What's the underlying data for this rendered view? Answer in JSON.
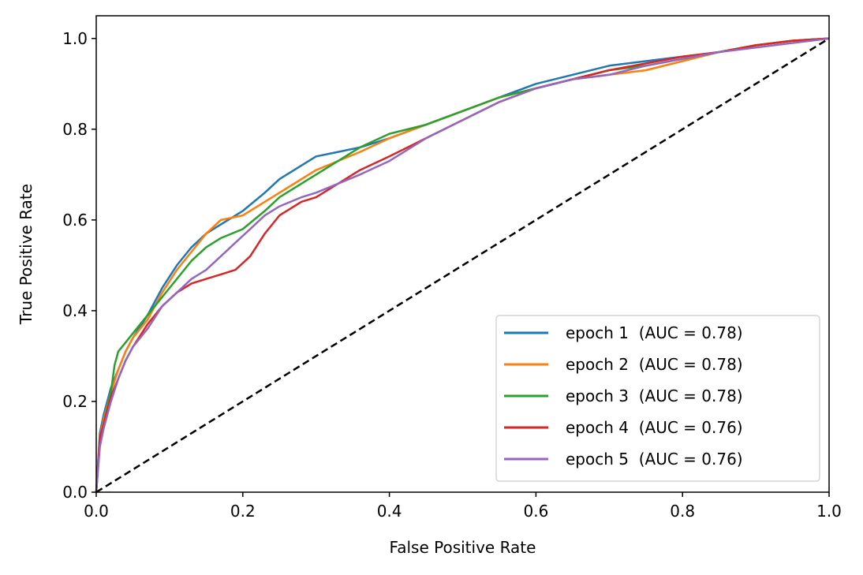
{
  "chart_data": {
    "type": "line",
    "title": "",
    "xlabel": "False Positive Rate",
    "ylabel": "True Positive Rate",
    "xlim": [
      0.0,
      1.0
    ],
    "ylim": [
      0.0,
      1.05
    ],
    "xticks": [
      "0.0",
      "0.2",
      "0.4",
      "0.6",
      "0.8",
      "1.0"
    ],
    "yticks": [
      "0.0",
      "0.2",
      "0.4",
      "0.6",
      "0.8",
      "1.0"
    ],
    "grid": false,
    "legend_position": "lower-right",
    "reference_line": {
      "x": [
        0,
        1
      ],
      "y": [
        0,
        1
      ],
      "style": "dashed",
      "color": "#000000"
    },
    "series": [
      {
        "name": "epoch 1  (AUC = 0.78)",
        "color": "#1f77b4",
        "x": [
          0,
          0.005,
          0.01,
          0.02,
          0.03,
          0.04,
          0.05,
          0.07,
          0.09,
          0.11,
          0.13,
          0.15,
          0.17,
          0.2,
          0.23,
          0.25,
          0.28,
          0.3,
          0.33,
          0.36,
          0.4,
          0.45,
          0.5,
          0.55,
          0.6,
          0.65,
          0.7,
          0.75,
          0.8,
          0.85,
          0.9,
          0.95,
          1.0
        ],
        "y": [
          0,
          0.13,
          0.17,
          0.23,
          0.27,
          0.31,
          0.34,
          0.39,
          0.45,
          0.5,
          0.54,
          0.57,
          0.59,
          0.62,
          0.66,
          0.69,
          0.72,
          0.74,
          0.75,
          0.76,
          0.78,
          0.81,
          0.84,
          0.87,
          0.9,
          0.92,
          0.94,
          0.95,
          0.96,
          0.97,
          0.985,
          0.995,
          1.0
        ]
      },
      {
        "name": "epoch 2  (AUC = 0.78)",
        "color": "#ff7f0e",
        "x": [
          0,
          0.005,
          0.01,
          0.02,
          0.03,
          0.04,
          0.05,
          0.07,
          0.09,
          0.11,
          0.13,
          0.15,
          0.17,
          0.2,
          0.23,
          0.25,
          0.28,
          0.3,
          0.33,
          0.36,
          0.4,
          0.45,
          0.5,
          0.55,
          0.6,
          0.65,
          0.7,
          0.75,
          0.8,
          0.85,
          0.9,
          0.95,
          1.0
        ],
        "y": [
          0,
          0.12,
          0.16,
          0.22,
          0.27,
          0.31,
          0.34,
          0.38,
          0.44,
          0.49,
          0.53,
          0.57,
          0.6,
          0.61,
          0.64,
          0.66,
          0.69,
          0.71,
          0.73,
          0.75,
          0.78,
          0.81,
          0.84,
          0.87,
          0.89,
          0.91,
          0.92,
          0.93,
          0.95,
          0.97,
          0.985,
          0.995,
          1.0
        ]
      },
      {
        "name": "epoch 3  (AUC = 0.78)",
        "color": "#2ca02c",
        "x": [
          0,
          0.005,
          0.01,
          0.02,
          0.025,
          0.03,
          0.04,
          0.05,
          0.07,
          0.09,
          0.11,
          0.13,
          0.15,
          0.17,
          0.2,
          0.23,
          0.25,
          0.28,
          0.3,
          0.33,
          0.36,
          0.4,
          0.45,
          0.5,
          0.55,
          0.6,
          0.65,
          0.7,
          0.75,
          0.8,
          0.85,
          0.9,
          0.95,
          1.0
        ],
        "y": [
          0,
          0.11,
          0.15,
          0.22,
          0.28,
          0.31,
          0.33,
          0.35,
          0.39,
          0.43,
          0.47,
          0.51,
          0.54,
          0.56,
          0.58,
          0.62,
          0.65,
          0.68,
          0.7,
          0.73,
          0.76,
          0.79,
          0.81,
          0.84,
          0.87,
          0.89,
          0.91,
          0.93,
          0.94,
          0.955,
          0.97,
          0.985,
          0.995,
          1.0
        ]
      },
      {
        "name": "epoch 4  (AUC = 0.76)",
        "color": "#d62728",
        "x": [
          0,
          0.005,
          0.01,
          0.02,
          0.03,
          0.04,
          0.05,
          0.07,
          0.09,
          0.11,
          0.13,
          0.15,
          0.17,
          0.19,
          0.21,
          0.23,
          0.25,
          0.28,
          0.3,
          0.33,
          0.36,
          0.4,
          0.45,
          0.5,
          0.55,
          0.6,
          0.65,
          0.7,
          0.75,
          0.8,
          0.85,
          0.9,
          0.95,
          1.0
        ],
        "y": [
          0,
          0.12,
          0.15,
          0.21,
          0.25,
          0.29,
          0.32,
          0.37,
          0.41,
          0.44,
          0.46,
          0.47,
          0.48,
          0.49,
          0.52,
          0.57,
          0.61,
          0.64,
          0.65,
          0.68,
          0.71,
          0.74,
          0.78,
          0.82,
          0.86,
          0.89,
          0.91,
          0.93,
          0.945,
          0.96,
          0.97,
          0.985,
          0.995,
          1.0
        ]
      },
      {
        "name": "epoch 5  (AUC = 0.76)",
        "color": "#9467bd",
        "x": [
          0,
          0.005,
          0.01,
          0.02,
          0.03,
          0.04,
          0.05,
          0.07,
          0.09,
          0.11,
          0.13,
          0.15,
          0.17,
          0.19,
          0.21,
          0.23,
          0.25,
          0.28,
          0.3,
          0.33,
          0.36,
          0.4,
          0.45,
          0.5,
          0.55,
          0.6,
          0.65,
          0.7,
          0.75,
          0.8,
          0.85,
          0.9,
          0.95,
          1.0
        ],
        "y": [
          0,
          0.1,
          0.14,
          0.2,
          0.25,
          0.29,
          0.32,
          0.36,
          0.41,
          0.44,
          0.47,
          0.49,
          0.52,
          0.55,
          0.58,
          0.61,
          0.63,
          0.65,
          0.66,
          0.68,
          0.7,
          0.73,
          0.78,
          0.82,
          0.86,
          0.89,
          0.91,
          0.92,
          0.94,
          0.955,
          0.97,
          0.98,
          0.99,
          1.0
        ]
      }
    ]
  }
}
